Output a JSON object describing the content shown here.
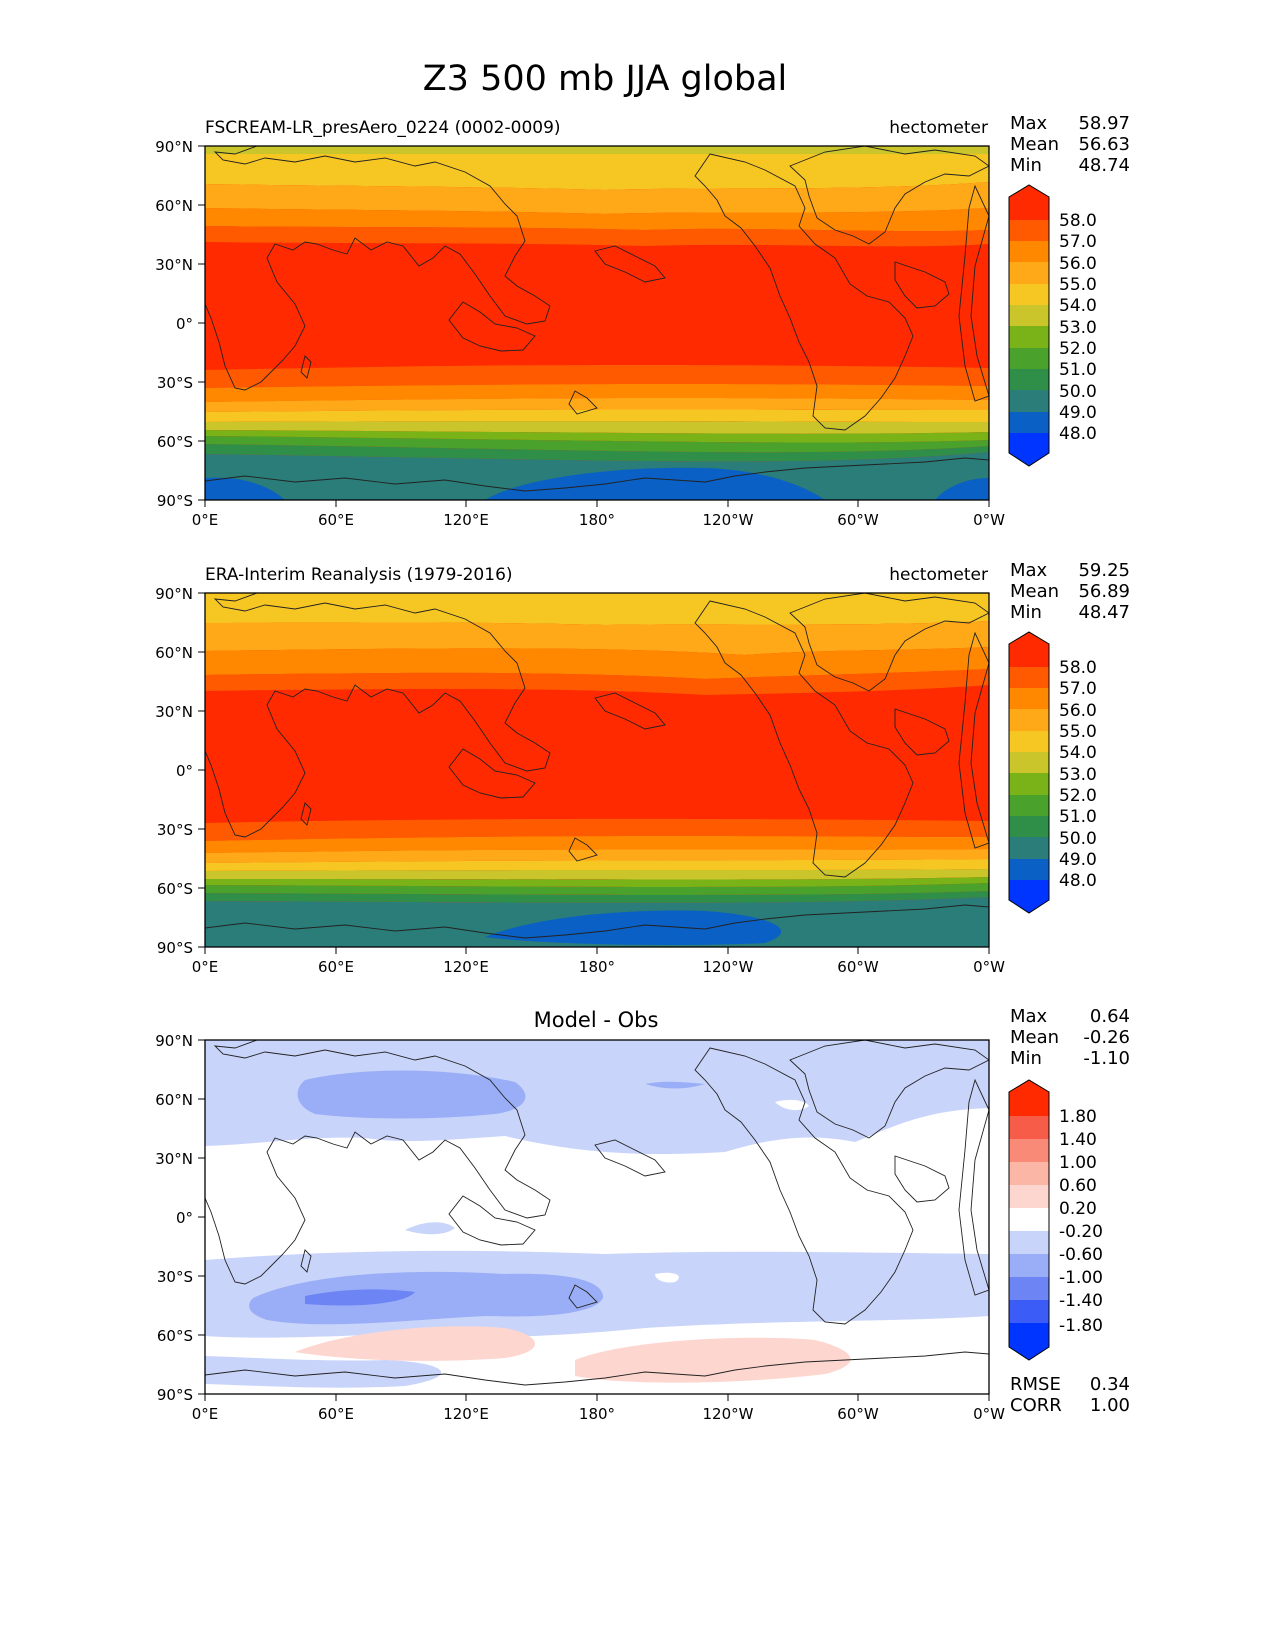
{
  "figure": {
    "title": "Z3 500 mb JJA global"
  },
  "axes": {
    "lat_ticks": [
      "90°N",
      "60°N",
      "30°N",
      "0°",
      "30°S",
      "60°S",
      "90°S"
    ],
    "lon_ticks": [
      "0°E",
      "60°E",
      "120°E",
      "180°",
      "120°W",
      "60°W",
      "0°W"
    ]
  },
  "panels": [
    {
      "title_left": "FSCREAM-LR_presAero_0224 (0002-0009)",
      "title_right": "hectometer",
      "title_center": "",
      "stats": [
        {
          "label": "Max",
          "value": "58.97"
        },
        {
          "label": "Mean",
          "value": "56.63"
        },
        {
          "label": "Min",
          "value": "48.74"
        }
      ],
      "extra_stats": [],
      "colorbar_labels": [
        "58.0",
        "57.0",
        "56.0",
        "55.0",
        "54.0",
        "53.0",
        "52.0",
        "51.0",
        "50.0",
        "49.0",
        "48.0"
      ]
    },
    {
      "title_left": "ERA-Interim Reanalysis (1979-2016)",
      "title_right": "hectometer",
      "title_center": "",
      "stats": [
        {
          "label": "Max",
          "value": "59.25"
        },
        {
          "label": "Mean",
          "value": "56.89"
        },
        {
          "label": "Min",
          "value": "48.47"
        }
      ],
      "extra_stats": [],
      "colorbar_labels": [
        "58.0",
        "57.0",
        "56.0",
        "55.0",
        "54.0",
        "53.0",
        "52.0",
        "51.0",
        "50.0",
        "49.0",
        "48.0"
      ]
    },
    {
      "title_left": "",
      "title_right": "",
      "title_center": "Model - Obs",
      "stats": [
        {
          "label": "Max",
          "value": "0.64"
        },
        {
          "label": "Mean",
          "value": "-0.26"
        },
        {
          "label": "Min",
          "value": "-1.10"
        }
      ],
      "extra_stats": [
        {
          "label": "RMSE",
          "value": "0.34"
        },
        {
          "label": "CORR",
          "value": "1.00"
        }
      ],
      "colorbar_labels": [
        "1.80",
        "1.40",
        "1.00",
        "0.60",
        "0.20",
        "-0.20",
        "-0.60",
        "-1.00",
        "-1.40",
        "-1.80"
      ]
    }
  ],
  "colors": {
    "z3_ramp_top_to_bottom": [
      "#ff2a00",
      "#ff5a00",
      "#ff8800",
      "#ffa818",
      "#f6c623",
      "#c9c52a",
      "#79b317",
      "#4aa22c",
      "#2f8f49",
      "#2a7d78",
      "#0a60c4",
      "#0035ff"
    ],
    "diff_ramp_top_to_bottom": [
      "#ff2a00",
      "#f65c48",
      "#f98a78",
      "#fbb6a6",
      "#fdd6d0",
      "#ffffff",
      "#c9d4fa",
      "#9aaef7",
      "#6d85f4",
      "#3c5cf8",
      "#0035ff"
    ],
    "coastline": "#222222"
  }
}
